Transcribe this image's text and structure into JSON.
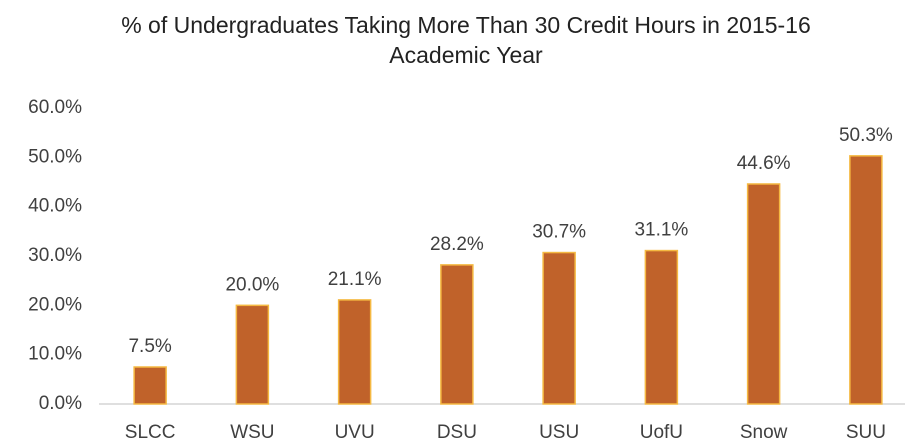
{
  "chart_data": {
    "type": "bar",
    "title": "% of Undergraduates Taking More Than 30 Credit Hours in 2015-16 Academic Year",
    "categories": [
      "SLCC",
      "WSU",
      "UVU",
      "DSU",
      "USU",
      "UofU",
      "Snow",
      "SUU"
    ],
    "values": [
      7.5,
      20.0,
      21.1,
      28.2,
      30.7,
      31.1,
      44.6,
      50.3
    ],
    "value_labels": [
      "7.5%",
      "20.0%",
      "21.1%",
      "28.2%",
      "30.7%",
      "31.1%",
      "44.6%",
      "50.3%"
    ],
    "color": "#c0622a",
    "ylim": [
      0,
      60
    ],
    "yticks": [
      {
        "value": 0,
        "label": "0.0%"
      },
      {
        "value": 10,
        "label": "10.0%"
      },
      {
        "value": 20,
        "label": "20.0%"
      },
      {
        "value": 30,
        "label": "30.0%"
      },
      {
        "value": 40,
        "label": "40.0%"
      },
      {
        "value": 50,
        "label": "50.0%"
      },
      {
        "value": 60,
        "label": "60.0%"
      }
    ],
    "grid": false
  }
}
